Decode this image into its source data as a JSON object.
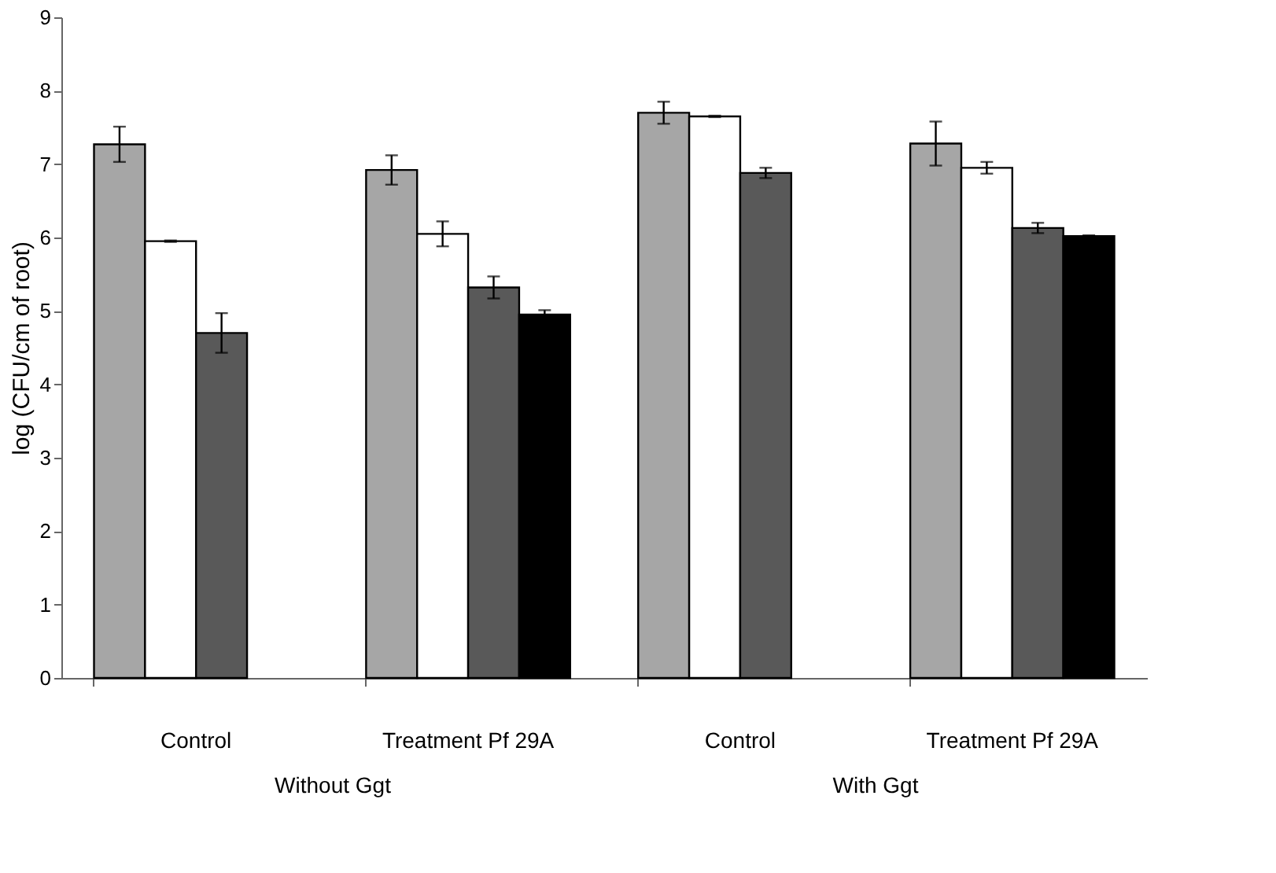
{
  "chart_data": {
    "type": "bar",
    "ylabel": "log (CFU/cm of root)",
    "categories": [
      "Control",
      "Treatment Pf 29A",
      "Control",
      "Treatment Pf 29A"
    ],
    "series": [
      {
        "color": "#a6a6a6",
        "values": [
          7.27,
          6.92,
          7.7,
          7.28
        ],
        "errors": [
          0.24,
          0.2,
          0.15,
          0.3
        ]
      },
      {
        "color": "#ffffff",
        "values": [
          5.95,
          6.05,
          7.65,
          6.95
        ],
        "errors": [
          0.01,
          0.17,
          0.01,
          0.08
        ]
      },
      {
        "color": "#595959",
        "values": [
          4.7,
          5.32,
          6.88,
          6.13
        ],
        "errors": [
          0.27,
          0.15,
          0.07,
          0.07
        ]
      },
      {
        "color": "#000000",
        "values": [
          null,
          4.95,
          null,
          6.02
        ],
        "errors": [
          null,
          0.06,
          null,
          0.01
        ]
      }
    ],
    "ylim": [
      0,
      9
    ],
    "yticks": [
      0,
      1,
      2,
      3,
      4,
      5,
      6,
      7,
      8,
      9
    ],
    "grid": false,
    "legend": false,
    "annotations": [
      "Without Ggt",
      "With Ggt"
    ]
  }
}
